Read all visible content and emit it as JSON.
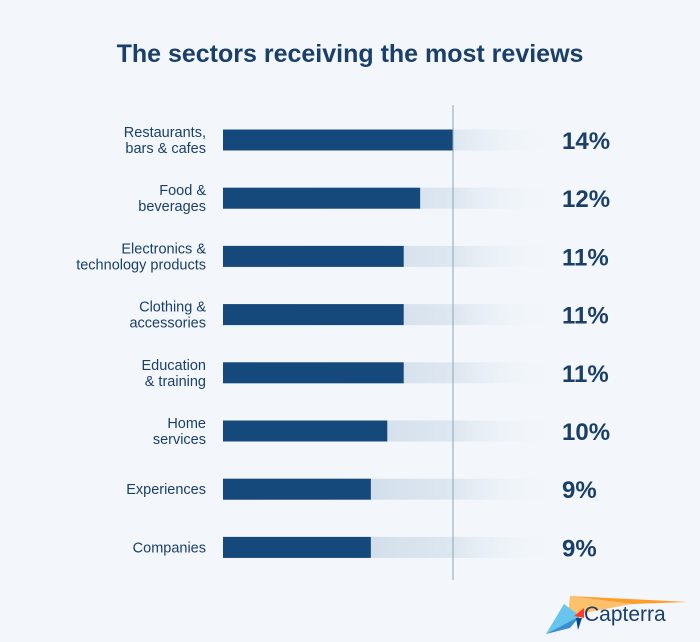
{
  "chart_data": {
    "type": "bar",
    "orientation": "horizontal",
    "title": "The sectors receiving the most reviews",
    "categories": [
      [
        "Restaurants,",
        "bars & cafes"
      ],
      [
        "Food &",
        "beverages"
      ],
      [
        "Electronics &",
        "technology products"
      ],
      [
        "Clothing &",
        "accessories"
      ],
      [
        "Education",
        "& training"
      ],
      [
        "Home",
        "services"
      ],
      [
        "Experiences"
      ],
      [
        "Companies"
      ]
    ],
    "values": [
      14,
      12,
      11,
      11,
      11,
      10,
      9,
      9
    ],
    "value_labels": [
      "14%",
      "12%",
      "11%",
      "11%",
      "11%",
      "10%",
      "9%",
      "9%"
    ],
    "xlim": [
      0,
      20
    ],
    "reference_line": 14,
    "colors": {
      "bar": "#15497c",
      "track": "#c6d5e3",
      "text": "#1a3f6b",
      "guide": "#8fa3b5"
    }
  },
  "brand": {
    "name": "Capterra"
  }
}
